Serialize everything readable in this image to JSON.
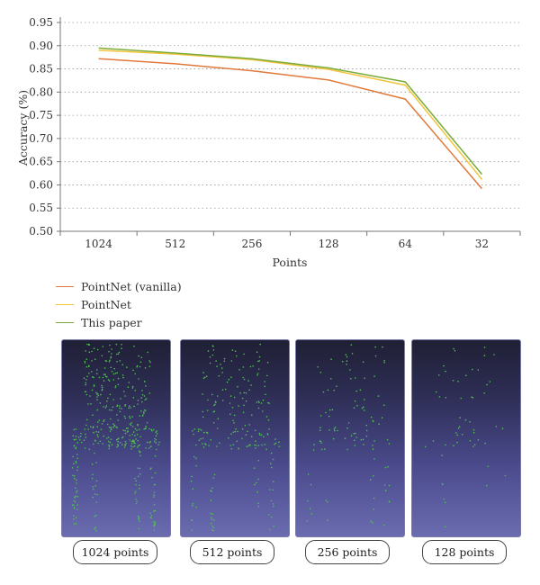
{
  "chart_data": {
    "type": "line",
    "xlabel": "Points",
    "ylabel": "Accuracy (%)",
    "categories": [
      "1024",
      "512",
      "256",
      "128",
      "64",
      "32"
    ],
    "yticks": [
      "0.50",
      "0.55",
      "0.60",
      "0.65",
      "0.70",
      "0.75",
      "0.80",
      "0.85",
      "0.90",
      "0.95"
    ],
    "ylim": [
      0.5,
      0.95
    ],
    "grid": "horizontal dotted",
    "legend_position": "bottom-left",
    "series": [
      {
        "name": "PointNet (vanilla)",
        "color": "#e07a3a",
        "values": [
          0.872,
          0.861,
          0.846,
          0.826,
          0.785,
          0.592
        ]
      },
      {
        "name": "PointNet",
        "color": "#f2c53d",
        "values": [
          0.89,
          0.882,
          0.87,
          0.849,
          0.815,
          0.612
        ]
      },
      {
        "name": "This paper",
        "color": "#7cab3c",
        "values": [
          0.895,
          0.884,
          0.872,
          0.852,
          0.822,
          0.623
        ]
      }
    ]
  },
  "samples": [
    {
      "label": "1024 points",
      "count": 1024
    },
    {
      "label": "512 points",
      "count": 512
    },
    {
      "label": "256 points",
      "count": 256
    },
    {
      "label": "128 points",
      "count": 128
    }
  ],
  "colors": {
    "point": "#4fc24f",
    "axis": "#777777",
    "grid": "#999999"
  }
}
